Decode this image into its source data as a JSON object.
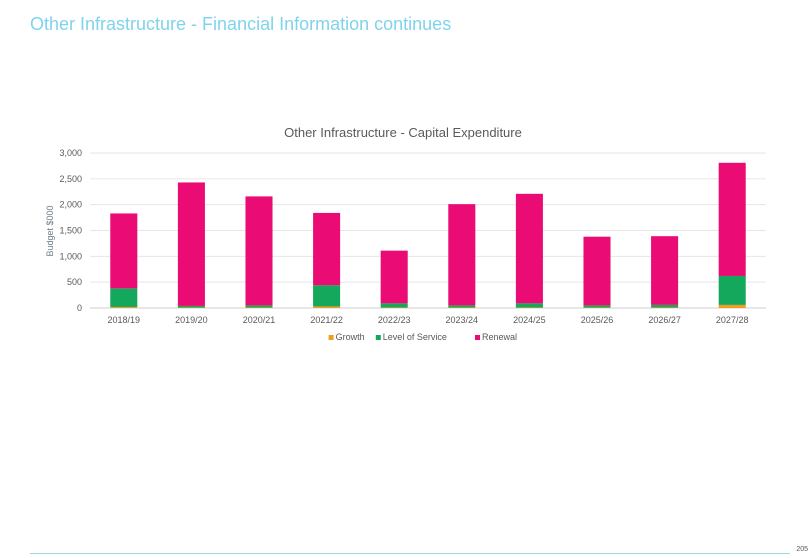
{
  "page": {
    "title": "Other Infrastructure - Financial Information continues",
    "page_number": "205"
  },
  "colors": {
    "title": "#7fd3ec",
    "growth": "#f39c1f",
    "level_of_service": "#13a85b",
    "renewal": "#ea0c74"
  },
  "chart_data": {
    "type": "bar",
    "stacked": true,
    "title": "Other Infrastructure - Capital Expenditure",
    "xlabel": "",
    "ylabel": "Budget $000",
    "ylim": [
      0,
      3000
    ],
    "yticks": [
      0,
      500,
      1000,
      1500,
      2000,
      2500,
      3000
    ],
    "ytick_labels": [
      "0",
      "500",
      "1,000",
      "1,500",
      "2,000",
      "2,500",
      "3,000"
    ],
    "grid": true,
    "legend": "bottom",
    "categories": [
      "2018/19",
      "2019/20",
      "2020/21",
      "2021/22",
      "2022/23",
      "2023/24",
      "2024/25",
      "2025/26",
      "2026/27",
      "2027/28"
    ],
    "series": [
      {
        "name": "Growth",
        "color": "#f39c1f",
        "values": [
          20,
          10,
          10,
          30,
          10,
          10,
          10,
          10,
          10,
          60
        ]
      },
      {
        "name": "Level of Service",
        "color": "#13a85b",
        "values": [
          360,
          30,
          40,
          410,
          80,
          40,
          80,
          40,
          50,
          560
        ]
      },
      {
        "name": "Renewal",
        "color": "#ea0c74",
        "values": [
          1450,
          2390,
          2110,
          1400,
          1020,
          1960,
          2120,
          1330,
          1330,
          2190
        ]
      }
    ]
  }
}
